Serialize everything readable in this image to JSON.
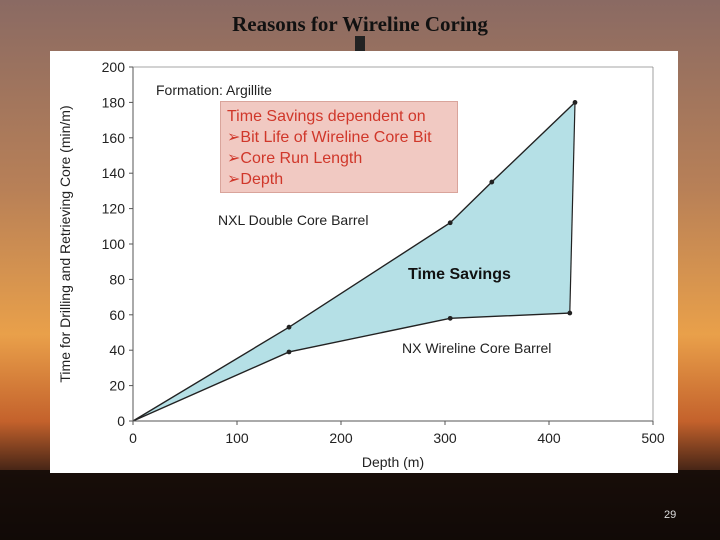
{
  "slide": {
    "title": "Reasons for Wireline Coring",
    "page_number": "29"
  },
  "colors": {
    "fill": "#b5e0e6",
    "text_highlight": "#d0372a",
    "highlight_bg": "#f1c9c2",
    "line": "#222222"
  },
  "chart_data": {
    "type": "area",
    "xlabel": "Depth (m)",
    "ylabel": "Time for Drilling and Retrieving Core (min/m)",
    "xlim": [
      0,
      500
    ],
    "ylim": [
      0,
      200
    ],
    "xticks": [
      0,
      100,
      200,
      300,
      400,
      500
    ],
    "yticks": [
      0,
      20,
      40,
      60,
      80,
      100,
      120,
      140,
      160,
      180,
      200
    ],
    "grid": false,
    "series": [
      {
        "name": "NXL Double Core Barrel",
        "x": [
          0,
          150,
          305,
          345,
          425
        ],
        "y": [
          0,
          53,
          112,
          135,
          180
        ]
      },
      {
        "name": "NX Wireline Core Barrel",
        "x": [
          0,
          150,
          305,
          420
        ],
        "y": [
          0,
          39,
          58,
          61
        ]
      }
    ],
    "annotations": {
      "formation": "Formation: Argillite",
      "shaded_region": "Time Savings",
      "note_lines": [
        "Time Savings dependent on",
        "Bit Life of Wireline Core Bit",
        "Core Run Length",
        "Depth"
      ]
    }
  }
}
